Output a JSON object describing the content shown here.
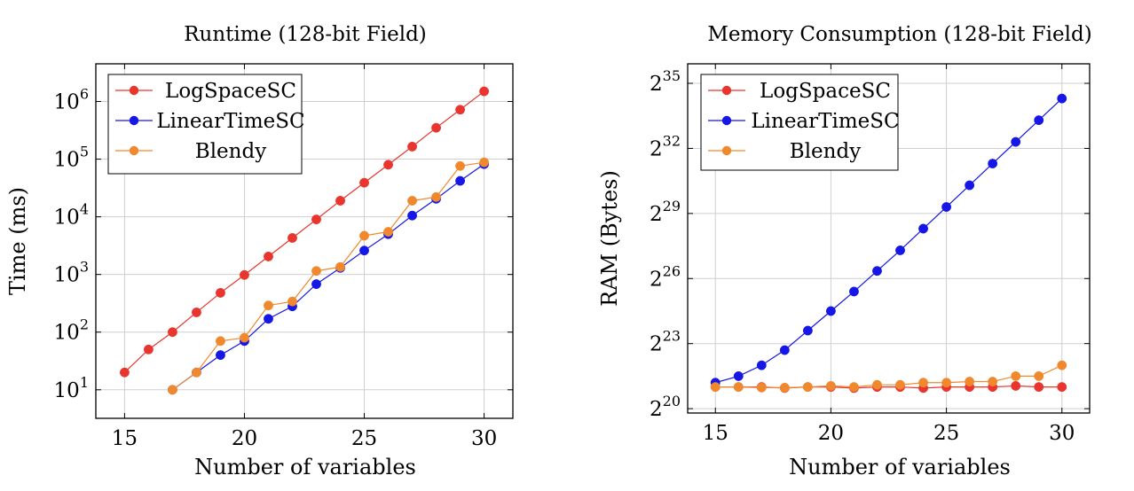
{
  "colors": {
    "red": "#e8352e",
    "blue": "#1616e6",
    "orange": "#f0892e",
    "grid": "#cfcfcf",
    "axis": "#000000"
  },
  "chart_data": [
    {
      "type": "line",
      "title": "Runtime (128-bit Field)",
      "xlabel": "Number of variables",
      "ylabel": "Time (ms)",
      "yscale": "log10",
      "xlim": [
        13.8,
        31.2
      ],
      "ylim": [
        3.2,
        4500000
      ],
      "xticks": [
        15,
        20,
        25,
        30
      ],
      "yticks": [
        {
          "base": "10",
          "exp": "1",
          "value": 10
        },
        {
          "base": "10",
          "exp": "2",
          "value": 100
        },
        {
          "base": "10",
          "exp": "3",
          "value": 1000
        },
        {
          "base": "10",
          "exp": "4",
          "value": 10000
        },
        {
          "base": "10",
          "exp": "5",
          "value": 100000
        },
        {
          "base": "10",
          "exp": "6",
          "value": 1000000
        }
      ],
      "grid": true,
      "legend_position": "top-left",
      "series": [
        {
          "name": "LogSpaceSC",
          "color": "#e8352e",
          "x": [
            15,
            16,
            17,
            18,
            19,
            20,
            21,
            22,
            23,
            24,
            25,
            26,
            27,
            28,
            29,
            30
          ],
          "y": [
            20,
            50,
            100,
            220,
            480,
            980,
            2050,
            4300,
            9000,
            19000,
            39000,
            80000,
            165000,
            350000,
            720000,
            1500000
          ]
        },
        {
          "name": "LinearTimeSC",
          "color": "#1616e6",
          "x": [
            17,
            18,
            19,
            20,
            21,
            22,
            23,
            24,
            25,
            26,
            27,
            28,
            29,
            30
          ],
          "y": [
            10,
            20,
            40,
            70,
            170,
            280,
            680,
            1300,
            2600,
            5000,
            10500,
            20500,
            42000,
            82000
          ]
        },
        {
          "name": "Blendy",
          "color": "#f0892e",
          "x": [
            17,
            18,
            19,
            20,
            21,
            22,
            23,
            24,
            25,
            26,
            27,
            28,
            29,
            30
          ],
          "y": [
            10,
            20,
            70,
            80,
            290,
            340,
            1150,
            1350,
            4700,
            5500,
            19000,
            22000,
            76000,
            88000
          ]
        }
      ]
    },
    {
      "type": "line",
      "title": "Memory Consumption (128-bit Field)",
      "xlabel": "Number of variables",
      "ylabel": "RAM (Bytes)",
      "yscale": "log2",
      "xlim": [
        13.8,
        31.2
      ],
      "ylim": [
        19.8,
        35.9
      ],
      "xticks": [
        15,
        20,
        25,
        30
      ],
      "yticks": [
        {
          "base": "2",
          "exp": "20",
          "value": 20
        },
        {
          "base": "2",
          "exp": "23",
          "value": 23
        },
        {
          "base": "2",
          "exp": "26",
          "value": 26
        },
        {
          "base": "2",
          "exp": "29",
          "value": 29
        },
        {
          "base": "2",
          "exp": "32",
          "value": 32
        },
        {
          "base": "2",
          "exp": "35",
          "value": 35
        }
      ],
      "grid": true,
      "legend_position": "top-left",
      "series": [
        {
          "name": "LogSpaceSC",
          "color": "#e8352e",
          "x": [
            15,
            16,
            17,
            18,
            19,
            20,
            21,
            22,
            23,
            24,
            25,
            26,
            27,
            28,
            29,
            30
          ],
          "y_log2": [
            21.0,
            21.0,
            21.0,
            20.95,
            21.0,
            21.0,
            20.95,
            21.0,
            21.0,
            20.95,
            21.0,
            21.0,
            21.0,
            21.05,
            21.0,
            21.0
          ]
        },
        {
          "name": "LinearTimeSC",
          "color": "#1616e6",
          "x": [
            15,
            16,
            17,
            18,
            19,
            20,
            21,
            22,
            23,
            24,
            25,
            26,
            27,
            28,
            29,
            30
          ],
          "y_log2": [
            21.2,
            21.5,
            22.0,
            22.7,
            23.6,
            24.5,
            25.4,
            26.35,
            27.3,
            28.3,
            29.3,
            30.3,
            31.3,
            32.3,
            33.3,
            34.3
          ]
        },
        {
          "name": "Blendy",
          "color": "#f0892e",
          "x": [
            15,
            16,
            17,
            18,
            19,
            20,
            21,
            22,
            23,
            24,
            25,
            26,
            27,
            28,
            29,
            30
          ],
          "y_log2": [
            21.0,
            21.0,
            20.97,
            20.97,
            21.0,
            21.05,
            21.0,
            21.1,
            21.1,
            21.2,
            21.2,
            21.25,
            21.25,
            21.5,
            21.5,
            22.0
          ]
        }
      ]
    }
  ]
}
